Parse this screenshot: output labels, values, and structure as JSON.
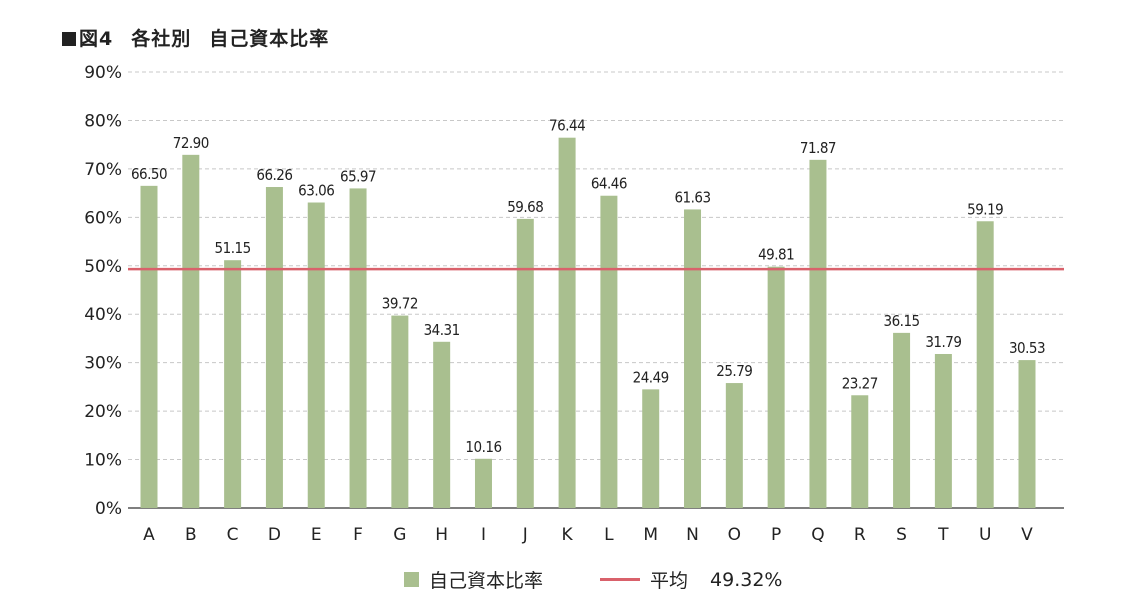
{
  "chart_data": {
    "type": "bar",
    "title_prefix": "図4",
    "title_main": "各社別",
    "title_sub": "自己資本比率",
    "categories": [
      "A",
      "B",
      "C",
      "D",
      "E",
      "F",
      "G",
      "H",
      "I",
      "J",
      "K",
      "L",
      "M",
      "N",
      "O",
      "P",
      "Q",
      "R",
      "S",
      "T",
      "U",
      "V"
    ],
    "series": [
      {
        "name": "自己資本比率",
        "values": [
          66.5,
          72.9,
          51.15,
          66.26,
          63.06,
          65.97,
          39.72,
          34.31,
          10.16,
          59.68,
          76.44,
          64.46,
          24.49,
          61.63,
          25.79,
          49.81,
          71.87,
          23.27,
          36.15,
          31.79,
          59.19,
          30.53
        ],
        "labels": [
          "66.50",
          "72.90",
          "51.15",
          "66.26",
          "63.06",
          "65.97",
          "39.72",
          "34.31",
          "10.16",
          "59.68",
          "76.44",
          "64.46",
          "24.49",
          "61.63",
          "25.79",
          "49.81",
          "71.87",
          "23.27",
          "36.15",
          "31.79",
          "59.19",
          "30.53"
        ],
        "color": "#a9bf8f"
      }
    ],
    "average": {
      "name": "平均",
      "value": 49.32,
      "label": "49.32%",
      "color": "#d9616b"
    },
    "yticks": [
      "0%",
      "10%",
      "20%",
      "30%",
      "40%",
      "50%",
      "60%",
      "70%",
      "80%",
      "90%"
    ],
    "ylim": [
      0,
      90
    ],
    "grid": true,
    "legend_position": "bottom-center"
  }
}
